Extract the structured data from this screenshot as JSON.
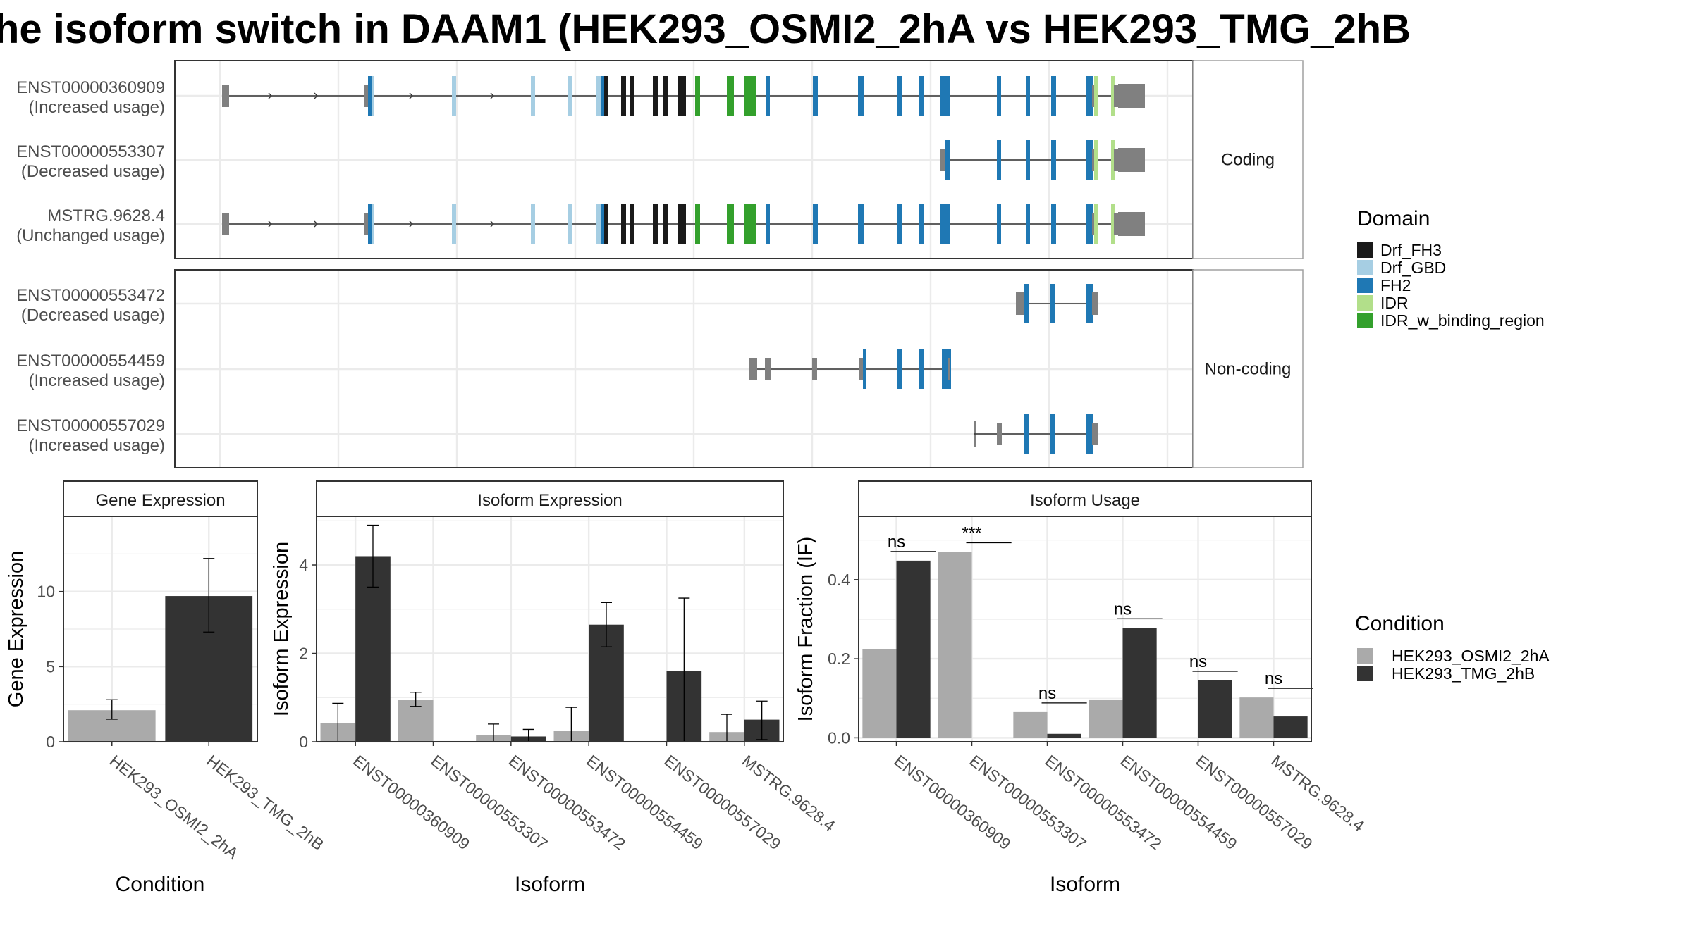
{
  "title": "he isoform switch in DAAM1 (HEK293_OSMI2_2hA vs HEK293_TMG_2hB",
  "colors": {
    "Drf_FH3": "#1a1a1a",
    "Drf_GBD": "#a6cee3",
    "FH2": "#1f78b4",
    "IDR": "#b2df8a",
    "IDR_w_binding_region": "#33a02c",
    "utr": "#808080",
    "cond_A": "#aaaaaa",
    "cond_B": "#333333",
    "grid": "#ebebeb",
    "panel_border": "#333333",
    "strip_fill": "#ffffff"
  },
  "structure": {
    "facets": [
      "Coding",
      "Non-coding"
    ],
    "domain_legend_title": "Domain",
    "domains": [
      "Drf_FH3",
      "Drf_GBD",
      "FH2",
      "IDR",
      "IDR_w_binding_region"
    ],
    "isoforms": [
      {
        "facet": "Coding",
        "name": "ENST00000360909",
        "note": "(Increased usage)",
        "full": true,
        "start": "early"
      },
      {
        "facet": "Coding",
        "name": "ENST00000553307",
        "note": "(Decreased usage)",
        "full": false,
        "start": "late"
      },
      {
        "facet": "Coding",
        "name": "MSTRG.9628.4",
        "note": "(Unchanged usage)",
        "full": true,
        "start": "early"
      },
      {
        "facet": "Non-coding",
        "name": "ENST00000553472",
        "note": "(Decreased usage)"
      },
      {
        "facet": "Non-coding",
        "name": "ENST00000554459",
        "note": "(Increased usage)"
      },
      {
        "facet": "Non-coding",
        "name": "ENST00000557029",
        "note": "(Increased usage)"
      }
    ]
  },
  "chart_data": [
    {
      "type": "bar",
      "title": "Gene Expression",
      "xlabel": "Condition",
      "ylabel": "Gene Expression",
      "categories": [
        "HEK293_OSMI2_2hA",
        "HEK293_TMG_2hB"
      ],
      "values": [
        2.1,
        9.7
      ],
      "error_low": [
        1.5,
        7.3
      ],
      "error_high": [
        2.8,
        12.2
      ],
      "ylim": [
        0,
        15
      ],
      "yticks": [
        0,
        5,
        10
      ]
    },
    {
      "type": "bar",
      "title": "Isoform Expression",
      "xlabel": "Isoform",
      "ylabel": "Isoform Expression",
      "categories": [
        "ENST00000360909",
        "ENST00000553307",
        "ENST00000553472",
        "ENST00000554459",
        "ENST00000557029",
        "MSTRG.9628.4"
      ],
      "series": [
        {
          "name": "HEK293_OSMI2_2hA",
          "values": [
            0.42,
            0.95,
            0.15,
            0.25,
            0.0,
            0.22
          ],
          "error_low": [
            0.0,
            0.8,
            0.0,
            0.0,
            0.0,
            0.0
          ],
          "error_high": [
            0.87,
            1.12,
            0.4,
            0.78,
            0.0,
            0.62
          ]
        },
        {
          "name": "HEK293_TMG_2hB",
          "values": [
            4.2,
            0.0,
            0.12,
            2.65,
            1.6,
            0.5
          ],
          "error_low": [
            3.5,
            0.0,
            0.0,
            2.15,
            0.0,
            0.05
          ],
          "error_high": [
            4.9,
            0.0,
            0.28,
            3.15,
            3.25,
            0.92
          ]
        }
      ],
      "ylim": [
        0,
        5.1
      ],
      "yticks": [
        0,
        2,
        4
      ]
    },
    {
      "type": "bar",
      "title": "Isoform Usage",
      "xlabel": "Isoform",
      "ylabel": "Isoform Fraction (IF)",
      "categories": [
        "ENST00000360909",
        "ENST00000553307",
        "ENST00000553472",
        "ENST00000554459",
        "ENST00000557029",
        "MSTRG.9628.4"
      ],
      "series": [
        {
          "name": "HEK293_OSMI2_2hA",
          "values": [
            0.225,
            0.47,
            0.065,
            0.097,
            0.0,
            0.102
          ]
        },
        {
          "name": "HEK293_TMG_2hB",
          "values": [
            0.448,
            0.0,
            0.01,
            0.278,
            0.145,
            0.054
          ]
        }
      ],
      "significance": [
        "ns",
        "***",
        "ns",
        "ns",
        "ns",
        "ns"
      ],
      "ylim": [
        -0.01,
        0.56
      ],
      "yticks": [
        0.0,
        0.2,
        0.4
      ],
      "ytick_labels": [
        "0.0",
        "0.2",
        "0.4"
      ]
    }
  ],
  "legend": {
    "title": "Condition",
    "items": [
      "HEK293_OSMI2_2hA",
      "HEK293_TMG_2hB"
    ]
  }
}
